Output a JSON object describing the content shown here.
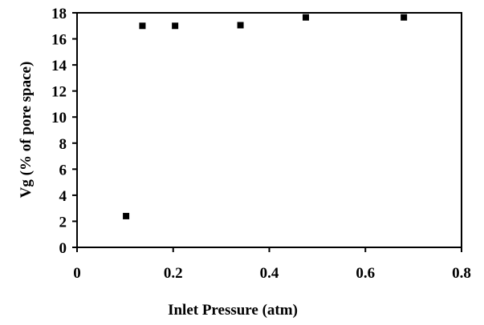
{
  "chart_data": {
    "type": "scatter",
    "title": "",
    "xlabel": "Inlet Pressure (atm)",
    "ylabel": "Vg  (% of pore space)",
    "xlim": [
      0,
      0.8
    ],
    "ylim": [
      0,
      18
    ],
    "x_ticks": [
      "0",
      "0.2",
      "0.4",
      "0.6",
      "0.8"
    ],
    "y_ticks": [
      "0",
      "2",
      "4",
      "6",
      "8",
      "10",
      "12",
      "14",
      "16",
      "18"
    ],
    "grid": false,
    "legend": "none",
    "marker": "square",
    "marker_color": "#000000",
    "series": [
      {
        "points": [
          {
            "x": 0.102,
            "y": 2.4
          },
          {
            "x": 0.136,
            "y": 17.0
          },
          {
            "x": 0.204,
            "y": 17.0
          },
          {
            "x": 0.34,
            "y": 17.05
          },
          {
            "x": 0.476,
            "y": 17.65
          },
          {
            "x": 0.68,
            "y": 17.65
          }
        ]
      }
    ]
  }
}
